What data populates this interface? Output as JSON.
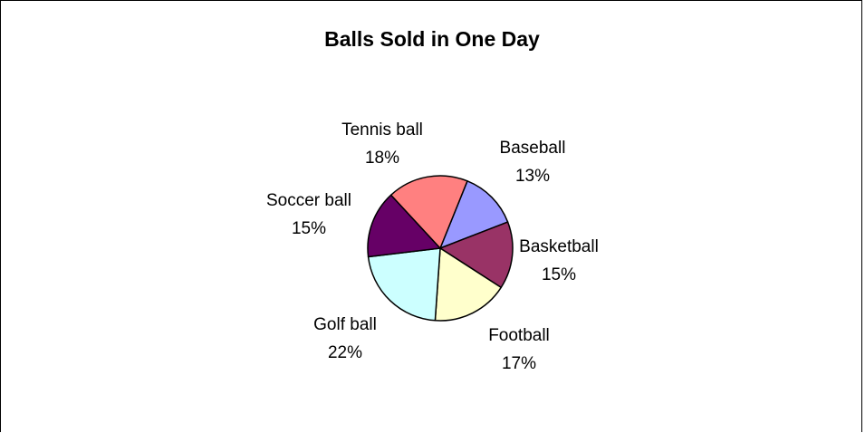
{
  "chart_data": {
    "type": "pie",
    "title": "Balls Sold in One Day",
    "categories": [
      "Baseball",
      "Basketball",
      "Football",
      "Golf ball",
      "Soccer ball",
      "Tennis ball"
    ],
    "values": [
      13,
      15,
      17,
      22,
      15,
      18
    ],
    "labels": [
      "13%",
      "15%",
      "17%",
      "22%",
      "15%",
      "18%"
    ],
    "colors": [
      "#9999ff",
      "#993366",
      "#ffffcc",
      "#ccffff",
      "#660066",
      "#ff8080"
    ],
    "start_angle_deg": 22,
    "direction": "clockwise",
    "legend": "none"
  }
}
